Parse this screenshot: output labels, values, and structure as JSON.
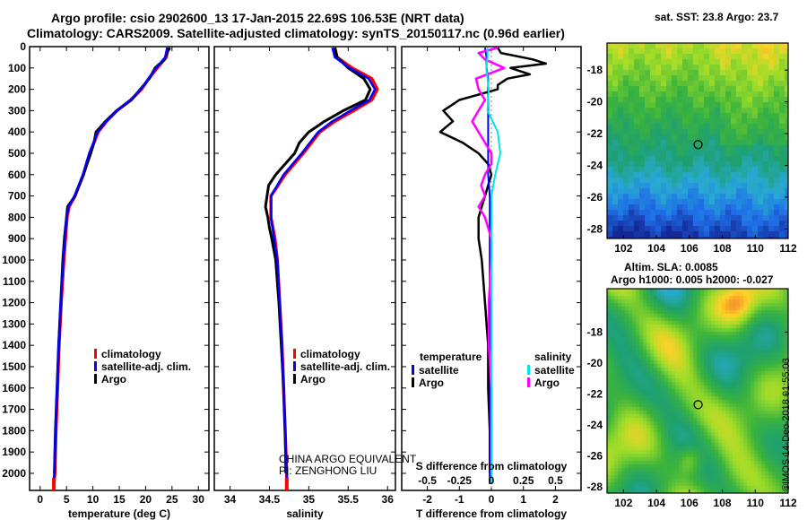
{
  "title_line1": "Argo profile: csio 2902600_13 17-Jan-2015 22.69S 106.53E (NRT data)",
  "title_line2": "Climatology: CARS2009. Satellite-adjusted climatology: synTS_20150117.nc (0.96d earlier)",
  "pi_line1": "CHINA ARGO EQUIVALENT",
  "pi_line2": "PI: ZENGHONG LIU",
  "timestamp": "©IMOS 14-Dec-2018 01:55:03",
  "colors": {
    "climatology": "#ff0000",
    "satellite": "#0000ff",
    "argo": "#000000",
    "argo_salinity": "#ff00ff",
    "satellite_salinity": "#00e5e5"
  },
  "chart_data": [
    {
      "type": "line",
      "xlabel": "temperature (deg C)",
      "xticks": [
        0,
        5,
        10,
        15,
        20,
        25,
        30
      ],
      "xlim": [
        -2,
        32
      ],
      "ylim": [
        2080,
        0
      ],
      "yticks": [
        0,
        100,
        200,
        300,
        400,
        500,
        600,
        700,
        800,
        900,
        1000,
        1100,
        1200,
        1300,
        1400,
        1500,
        1600,
        1700,
        1800,
        1900,
        2000
      ],
      "legend": [
        "climatology",
        "satellite-adj. clim.",
        "Argo"
      ],
      "series": [
        {
          "name": "climatology",
          "depth": [
            5,
            50,
            100,
            150,
            200,
            250,
            300,
            350,
            400,
            500,
            600,
            700,
            750,
            800,
            1000,
            1200,
            1400,
            1600,
            1800,
            2000,
            2050
          ],
          "values": [
            24.3,
            23.9,
            22.2,
            20.6,
            19.2,
            17.2,
            14.6,
            12.6,
            11.0,
            9.4,
            8.2,
            6.6,
            5.5,
            5.1,
            4.5,
            4.0,
            3.6,
            3.3,
            3.0,
            2.8,
            2.6
          ]
        },
        {
          "name": "satellite-adj. clim.",
          "depth": [
            5,
            50,
            100,
            150,
            200,
            250,
            300,
            350,
            400,
            500,
            600,
            700,
            750,
            800,
            1000,
            1200,
            1400,
            1600,
            1800,
            2000,
            2050
          ],
          "values": [
            24.1,
            23.7,
            22.0,
            20.5,
            19.1,
            17.1,
            14.5,
            12.5,
            10.9,
            9.3,
            8.1,
            6.5,
            5.4,
            5.0,
            4.4,
            3.9,
            3.5,
            3.2,
            2.9,
            2.7,
            2.5
          ]
        },
        {
          "name": "Argo",
          "depth": [
            5,
            30,
            60,
            100,
            150,
            200,
            250,
            300,
            350,
            400,
            450,
            500,
            600,
            700,
            750,
            800,
            900,
            1000,
            1200,
            1400,
            1600,
            1800,
            2000
          ],
          "values": [
            24.6,
            24.0,
            23.6,
            21.8,
            20.7,
            19.0,
            17.3,
            14.5,
            12.4,
            10.6,
            10.2,
            9.6,
            8.2,
            6.6,
            5.2,
            5.0,
            4.6,
            4.3,
            3.9,
            3.5,
            3.2,
            2.9,
            2.7
          ]
        }
      ]
    },
    {
      "type": "line",
      "xlabel": "salinity",
      "xticks": [
        34,
        34.5,
        35,
        35.5,
        36
      ],
      "xlim": [
        33.8,
        36.1
      ],
      "ylim": [
        2080,
        0
      ],
      "legend": [
        "climatology",
        "satellite-adj. clim.",
        "Argo"
      ],
      "series": [
        {
          "name": "climatology",
          "depth": [
            5,
            50,
            100,
            150,
            200,
            250,
            300,
            350,
            400,
            500,
            600,
            700,
            800,
            900,
            1000,
            1200,
            1400,
            1600,
            1800,
            2000,
            2050
          ],
          "values": [
            35.33,
            35.36,
            35.55,
            35.8,
            35.87,
            35.8,
            35.57,
            35.33,
            35.14,
            34.93,
            34.7,
            34.52,
            34.52,
            34.57,
            34.6,
            34.63,
            34.66,
            34.68,
            34.7,
            34.72,
            34.72
          ]
        },
        {
          "name": "satellite-adj. clim.",
          "depth": [
            5,
            50,
            100,
            150,
            200,
            250,
            300,
            350,
            400,
            500,
            600,
            700,
            800,
            900,
            1000,
            1200,
            1400,
            1600,
            1800,
            2000,
            2050
          ],
          "values": [
            35.3,
            35.33,
            35.52,
            35.76,
            35.84,
            35.77,
            35.53,
            35.3,
            35.12,
            34.91,
            34.68,
            34.52,
            34.52,
            34.56,
            34.6,
            34.63,
            34.66,
            34.68,
            34.7,
            34.72,
            34.72
          ]
        },
        {
          "name": "Argo",
          "depth": [
            5,
            50,
            100,
            150,
            200,
            250,
            300,
            350,
            400,
            450,
            500,
            600,
            650,
            700,
            750,
            800,
            850,
            900,
            1000,
            1200,
            1400,
            1600,
            1800,
            2000
          ],
          "values": [
            35.33,
            35.36,
            35.5,
            35.7,
            35.78,
            35.72,
            35.44,
            35.2,
            35.0,
            34.88,
            34.82,
            34.58,
            34.49,
            34.47,
            34.45,
            34.48,
            34.5,
            34.53,
            34.58,
            34.62,
            34.65,
            34.68,
            34.7,
            34.71
          ]
        }
      ]
    },
    {
      "type": "line",
      "xlabel": "T difference from climatology",
      "xticks": [
        -2,
        -1,
        0,
        1,
        2
      ],
      "xlim": [
        -2.8,
        2.8
      ],
      "top_axis_label": "S difference from climatology",
      "top_ticks": [
        "-0.5",
        "-0.25",
        "0",
        "0.25",
        "0.5"
      ],
      "top_tick_values": [
        -0.5,
        -0.25,
        0,
        0.25,
        0.5
      ],
      "ylim": [
        2080,
        0
      ],
      "legend_temperature_title": "temperature",
      "legend_salinity_title": "salinity",
      "legend_temperature": [
        "satellite",
        "Argo"
      ],
      "legend_salinity": [
        "satellite",
        "Argo"
      ],
      "series": [
        {
          "name": "temperature satellite",
          "depth": [
            5,
            50,
            100,
            150,
            200,
            300,
            400,
            500,
            600,
            700,
            800,
            1000,
            1500,
            2000,
            2050
          ],
          "values": [
            -0.2,
            -0.15,
            -0.15,
            -0.1,
            -0.1,
            -0.1,
            -0.1,
            -0.1,
            -0.1,
            -0.05,
            -0.05,
            -0.05,
            -0.05,
            -0.05,
            -0.05
          ]
        },
        {
          "name": "temperature Argo",
          "depth": [
            5,
            30,
            60,
            80,
            100,
            130,
            150,
            180,
            200,
            250,
            300,
            350,
            400,
            450,
            500,
            550,
            600,
            650,
            700,
            750,
            800,
            900,
            1000,
            1200,
            1400,
            1600,
            1800,
            2000
          ],
          "values": [
            0.2,
            0.3,
            1.3,
            1.7,
            0.6,
            1.2,
            0.5,
            0.2,
            0.2,
            -1.0,
            -1.5,
            -1.2,
            -1.6,
            -0.9,
            -0.4,
            -0.1,
            0.0,
            -0.1,
            -0.2,
            -0.3,
            -0.4,
            -0.4,
            -0.3,
            -0.2,
            -0.1,
            -0.1,
            -0.05,
            -0.05
          ]
        },
        {
          "name": "salinity satellite",
          "depth": [
            5,
            50,
            100,
            150,
            200,
            300,
            400,
            500,
            600,
            700,
            800,
            1000,
            1500,
            2000,
            2050
          ],
          "values": [
            -0.03,
            -0.03,
            -0.04,
            -0.03,
            -0.02,
            -0.03,
            0.05,
            0.07,
            0.03,
            0.0,
            0.0,
            0.0,
            0.0,
            0.0,
            0.0
          ]
        },
        {
          "name": "salinity Argo",
          "depth": [
            5,
            30,
            60,
            100,
            150,
            200,
            250,
            300,
            350,
            400,
            450,
            500,
            550,
            600,
            650,
            700,
            750,
            800,
            900,
            1000,
            1200,
            1400,
            1600,
            1800,
            2000
          ],
          "values": [
            0.05,
            -0.1,
            -0.05,
            0.1,
            -0.12,
            -0.1,
            -0.05,
            -0.1,
            -0.15,
            -0.1,
            -0.05,
            0.0,
            0.0,
            -0.05,
            -0.08,
            -0.05,
            -0.1,
            -0.05,
            0.0,
            0.0,
            -0.02,
            -0.02,
            0.0,
            0.0,
            0.0
          ]
        }
      ]
    },
    {
      "type": "heatmap",
      "title": "sat. SST: 23.8 Argo: 23.7",
      "xticks": [
        102,
        104,
        106,
        108,
        110,
        112
      ],
      "xlim": [
        101,
        112
      ],
      "yticks": [
        -18,
        -20,
        -22,
        -24,
        -26,
        -28
      ],
      "ylim": [
        -28.6,
        -16.3
      ],
      "marker": {
        "lon": 106.53,
        "lat": -22.69
      }
    },
    {
      "type": "heatmap",
      "title_line1": "Altim. SLA: 0.0085",
      "title_line2": "Argo h1000: 0.005 h2000: -0.027",
      "xticks": [
        102,
        104,
        106,
        108,
        110,
        112
      ],
      "xlim": [
        101,
        112
      ],
      "yticks": [
        -18,
        -20,
        -22,
        -24,
        -26,
        -28
      ],
      "ylim": [
        -28.4,
        -15.2
      ],
      "marker": {
        "lon": 106.53,
        "lat": -22.69
      }
    }
  ]
}
